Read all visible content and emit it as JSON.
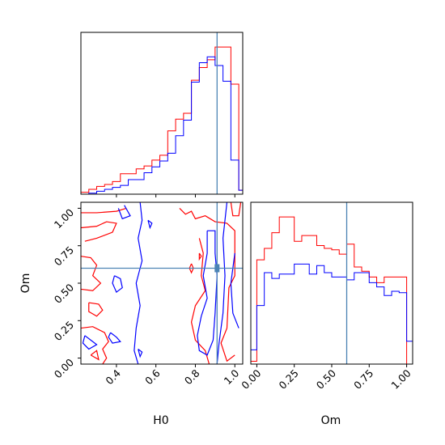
{
  "chart_data": [
    {
      "type": "histogram",
      "panel": "H0 marginal",
      "x_range": [
        0.22,
        1.04
      ],
      "x_ticks": [
        "0.4",
        "0.6",
        "0.8",
        "1.0"
      ],
      "tick_labels_visible": false,
      "truth": 0.91,
      "colors": {
        "red": "#ff0000",
        "blue": "#0000ff",
        "truth": "#4c84b4"
      },
      "bin_edges": [
        0.22,
        0.26,
        0.3,
        0.34,
        0.38,
        0.42,
        0.46,
        0.5,
        0.54,
        0.58,
        0.62,
        0.66,
        0.7,
        0.74,
        0.78,
        0.82,
        0.86,
        0.9,
        0.94,
        0.98,
        1.02,
        1.04
      ],
      "series": [
        {
          "color": "red",
          "values": [
            0.2,
            0.5,
            0.8,
            1.0,
            1.3,
            2.1,
            2.1,
            2.6,
            2.9,
            3.5,
            4.0,
            6.5,
            7.7,
            8.3,
            11.7,
            13.0,
            13.8,
            15.1,
            15.1,
            11.3,
            0.4
          ]
        },
        {
          "color": "blue",
          "values": [
            0.0,
            0.1,
            0.3,
            0.5,
            0.7,
            0.9,
            1.5,
            1.5,
            2.2,
            2.8,
            3.4,
            4.2,
            6.0,
            7.6,
            11.5,
            13.5,
            14.1,
            13.2,
            11.6,
            3.5,
            0.4
          ]
        }
      ]
    },
    {
      "type": "contour",
      "panel": "Om vs H0",
      "xlabel": "H0",
      "ylabel": "Om",
      "x_range": [
        0.22,
        1.04
      ],
      "y_range": [
        -0.04,
        1.04
      ],
      "x_ticks": [
        "0.4",
        "0.6",
        "0.8",
        "1.0"
      ],
      "y_ticks": [
        "0.00",
        "0.25",
        "0.50",
        "0.75",
        "1.00"
      ],
      "truth": {
        "H0": 0.91,
        "Om": 0.6
      },
      "colors": {
        "red": "#ff0000",
        "blue": "#0000ff",
        "truth": "#4c84b4"
      },
      "series": [
        {
          "color": "red",
          "contours": [
            [
              [
                0.22,
                0.97
              ],
              [
                0.3,
                0.97
              ],
              [
                0.4,
                0.98
              ],
              [
                0.45,
                1.0
              ]
            ],
            [
              [
                0.22,
                0.87
              ],
              [
                0.3,
                0.88
              ],
              [
                0.35,
                0.91
              ],
              [
                0.4,
                0.9
              ],
              [
                0.38,
                0.84
              ],
              [
                0.3,
                0.8
              ],
              [
                0.24,
                0.78
              ]
            ],
            [
              [
                0.22,
                0.68
              ],
              [
                0.27,
                0.67
              ],
              [
                0.3,
                0.62
              ],
              [
                0.28,
                0.55
              ],
              [
                0.32,
                0.5
              ],
              [
                0.28,
                0.45
              ],
              [
                0.22,
                0.46
              ]
            ],
            [
              [
                0.26,
                0.37
              ],
              [
                0.31,
                0.36
              ],
              [
                0.33,
                0.32
              ],
              [
                0.3,
                0.28
              ],
              [
                0.26,
                0.31
              ],
              [
                0.26,
                0.37
              ]
            ],
            [
              [
                0.22,
                0.2
              ],
              [
                0.28,
                0.21
              ],
              [
                0.34,
                0.17
              ],
              [
                0.36,
                0.11
              ],
              [
                0.33,
                0.06
              ],
              [
                0.35,
                0.0
              ],
              [
                0.33,
                -0.04
              ]
            ],
            [
              [
                0.27,
                0.02
              ],
              [
                0.3,
                0.05
              ],
              [
                0.31,
                -0.01
              ],
              [
                0.27,
                0.02
              ]
            ],
            [
              [
                0.72,
                1.0
              ],
              [
                0.75,
                0.96
              ],
              [
                0.78,
                0.98
              ],
              [
                0.8,
                0.93
              ],
              [
                0.85,
                0.95
              ],
              [
                0.9,
                0.91
              ],
              [
                0.96,
                0.9
              ],
              [
                1.0,
                0.85
              ],
              [
                1.0,
                0.55
              ],
              [
                0.97,
                0.47
              ],
              [
                0.96,
                0.2
              ],
              [
                0.93,
                0.1
              ],
              [
                0.96,
                -0.02
              ],
              [
                1.0,
                0.02
              ]
            ],
            [
              [
                0.82,
                0.8
              ],
              [
                0.84,
                0.7
              ],
              [
                0.83,
                0.55
              ],
              [
                0.85,
                0.45
              ],
              [
                0.8,
                0.35
              ],
              [
                0.78,
                0.24
              ],
              [
                0.8,
                0.12
              ],
              [
                0.85,
                0.05
              ],
              [
                0.87,
                -0.04
              ]
            ],
            [
              [
                0.78,
                0.63
              ],
              [
                0.79,
                0.6
              ],
              [
                0.78,
                0.57
              ],
              [
                0.77,
                0.6
              ],
              [
                0.78,
                0.63
              ]
            ],
            [
              [
                0.82,
                0.7
              ],
              [
                0.83,
                0.68
              ],
              [
                0.82,
                0.66
              ],
              [
                0.82,
                0.7
              ]
            ],
            [
              [
                0.98,
                1.04
              ],
              [
                0.99,
                0.95
              ],
              [
                1.02,
                0.95
              ],
              [
                1.03,
                1.04
              ]
            ]
          ]
        },
        {
          "color": "blue",
          "contours": [
            [
              [
                0.41,
                1.0
              ],
              [
                0.43,
                0.93
              ],
              [
                0.47,
                0.95
              ],
              [
                0.44,
                1.02
              ]
            ],
            [
              [
                0.51,
                -0.04
              ],
              [
                0.49,
                0.05
              ],
              [
                0.5,
                0.2
              ],
              [
                0.52,
                0.35
              ],
              [
                0.5,
                0.5
              ],
              [
                0.53,
                0.65
              ],
              [
                0.51,
                0.8
              ],
              [
                0.53,
                0.92
              ],
              [
                0.52,
                1.04
              ]
            ],
            [
              [
                0.39,
                0.55
              ],
              [
                0.42,
                0.53
              ],
              [
                0.43,
                0.47
              ],
              [
                0.4,
                0.44
              ],
              [
                0.38,
                0.5
              ],
              [
                0.39,
                0.55
              ]
            ],
            [
              [
                0.24,
                0.15
              ],
              [
                0.27,
                0.12
              ],
              [
                0.3,
                0.09
              ],
              [
                0.26,
                0.06
              ],
              [
                0.23,
                0.1
              ],
              [
                0.24,
                0.15
              ]
            ],
            [
              [
                0.37,
                0.17
              ],
              [
                0.4,
                0.14
              ],
              [
                0.42,
                0.11
              ],
              [
                0.38,
                0.1
              ],
              [
                0.36,
                0.14
              ],
              [
                0.37,
                0.17
              ]
            ],
            [
              [
                0.51,
                0.06
              ],
              [
                0.53,
                0.04
              ],
              [
                0.52,
                0.01
              ],
              [
                0.51,
                0.06
              ]
            ],
            [
              [
                0.56,
                0.92
              ],
              [
                0.58,
                0.9
              ],
              [
                0.57,
                0.87
              ],
              [
                0.56,
                0.92
              ]
            ],
            [
              [
                0.86,
                0.85
              ],
              [
                0.86,
                0.7
              ],
              [
                0.84,
                0.55
              ],
              [
                0.86,
                0.4
              ],
              [
                0.83,
                0.28
              ],
              [
                0.81,
                0.15
              ],
              [
                0.82,
                0.05
              ],
              [
                0.86,
                0.02
              ],
              [
                0.89,
                0.12
              ],
              [
                0.9,
                0.3
              ],
              [
                0.91,
                0.55
              ],
              [
                0.9,
                0.7
              ],
              [
                0.9,
                0.85
              ],
              [
                0.86,
                0.85
              ]
            ],
            [
              [
                0.96,
                1.04
              ],
              [
                0.94,
                0.8
              ],
              [
                0.95,
                0.55
              ],
              [
                0.94,
                0.3
              ],
              [
                0.92,
                0.1
              ],
              [
                0.91,
                -0.04
              ]
            ],
            [
              [
                1.0,
                0.7
              ],
              [
                0.98,
                0.5
              ],
              [
                0.99,
                0.3
              ],
              [
                1.02,
                0.2
              ]
            ]
          ]
        }
      ]
    },
    {
      "type": "histogram",
      "panel": "Om marginal",
      "xlabel": "Om",
      "x_range": [
        -0.04,
        1.04
      ],
      "x_ticks": [
        "0.00",
        "0.25",
        "0.50",
        "0.75",
        "1.00"
      ],
      "truth": 0.6,
      "colors": {
        "red": "#ff0000",
        "blue": "#0000ff",
        "truth": "#4c84b4"
      },
      "bin_edges": [
        -0.04,
        0.0,
        0.05,
        0.1,
        0.15,
        0.2,
        0.25,
        0.3,
        0.35,
        0.4,
        0.45,
        0.5,
        0.55,
        0.6,
        0.65,
        0.7,
        0.75,
        0.8,
        0.85,
        0.9,
        0.95,
        1.0,
        1.04
      ],
      "series": [
        {
          "color": "red",
          "values": [
            0.2,
            7.3,
            8.1,
            9.2,
            10.3,
            10.3,
            8.6,
            9.0,
            9.0,
            8.3,
            8.1,
            8.0,
            7.7,
            8.4,
            6.8,
            6.5,
            6.1,
            5.7,
            6.1,
            6.1,
            6.1,
            0.0
          ]
        },
        {
          "color": "blue",
          "values": [
            1.0,
            4.1,
            6.4,
            6.0,
            6.3,
            6.3,
            7.0,
            7.0,
            6.3,
            6.9,
            6.4,
            6.1,
            6.1,
            5.9,
            6.4,
            6.4,
            5.7,
            5.4,
            4.8,
            5.1,
            5.0,
            1.6
          ]
        }
      ]
    }
  ]
}
